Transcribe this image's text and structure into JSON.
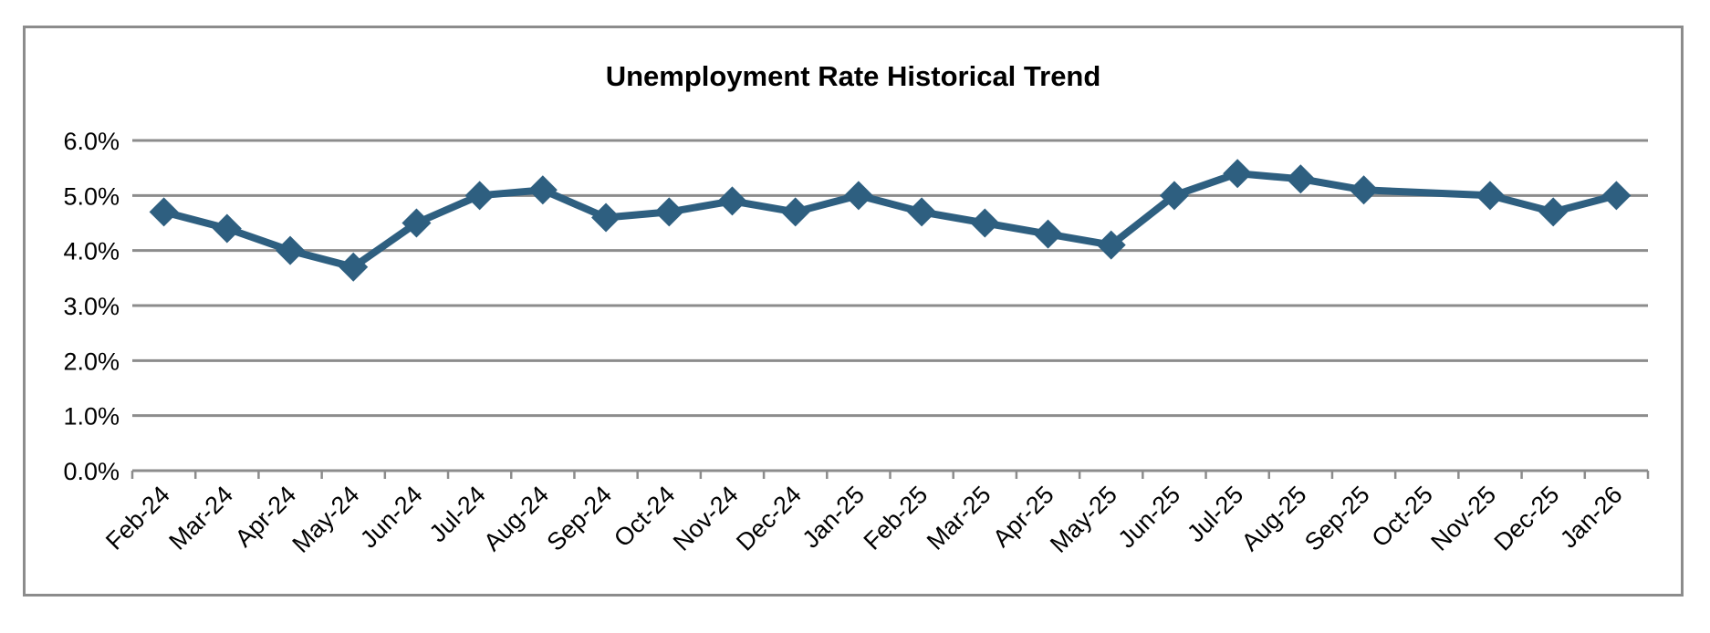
{
  "chart_data": {
    "type": "line",
    "title": "Unemployment Rate Historical Trend",
    "xlabel": "",
    "ylabel": "",
    "categories": [
      "Feb-24",
      "Mar-24",
      "Apr-24",
      "May-24",
      "Jun-24",
      "Jul-24",
      "Aug-24",
      "Sep-24",
      "Oct-24",
      "Nov-24",
      "Dec-24",
      "Jan-25",
      "Feb-25",
      "Mar-25",
      "Apr-25",
      "May-25",
      "Jun-25",
      "Jul-25",
      "Aug-25",
      "Sep-25",
      "Oct-25",
      "Nov-25",
      "Dec-25",
      "Jan-26"
    ],
    "series": [
      {
        "values": [
          4.7,
          4.4,
          4.0,
          3.7,
          4.5,
          5.0,
          5.1,
          4.6,
          4.7,
          4.9,
          4.7,
          5.0,
          4.7,
          4.5,
          4.3,
          4.1,
          5.0,
          5.4,
          5.3,
          5.1,
          null,
          5.0,
          4.7,
          5.0
        ]
      }
    ],
    "ylim": [
      0,
      6
    ],
    "yticks": [
      "0.0%",
      "1.0%",
      "2.0%",
      "3.0%",
      "4.0%",
      "5.0%",
      "6.0%"
    ],
    "grid": "horizontal",
    "legend": "none",
    "marker": "diamond",
    "series_color": "#2e5f80",
    "gridline_color": "#8c8c8c"
  }
}
